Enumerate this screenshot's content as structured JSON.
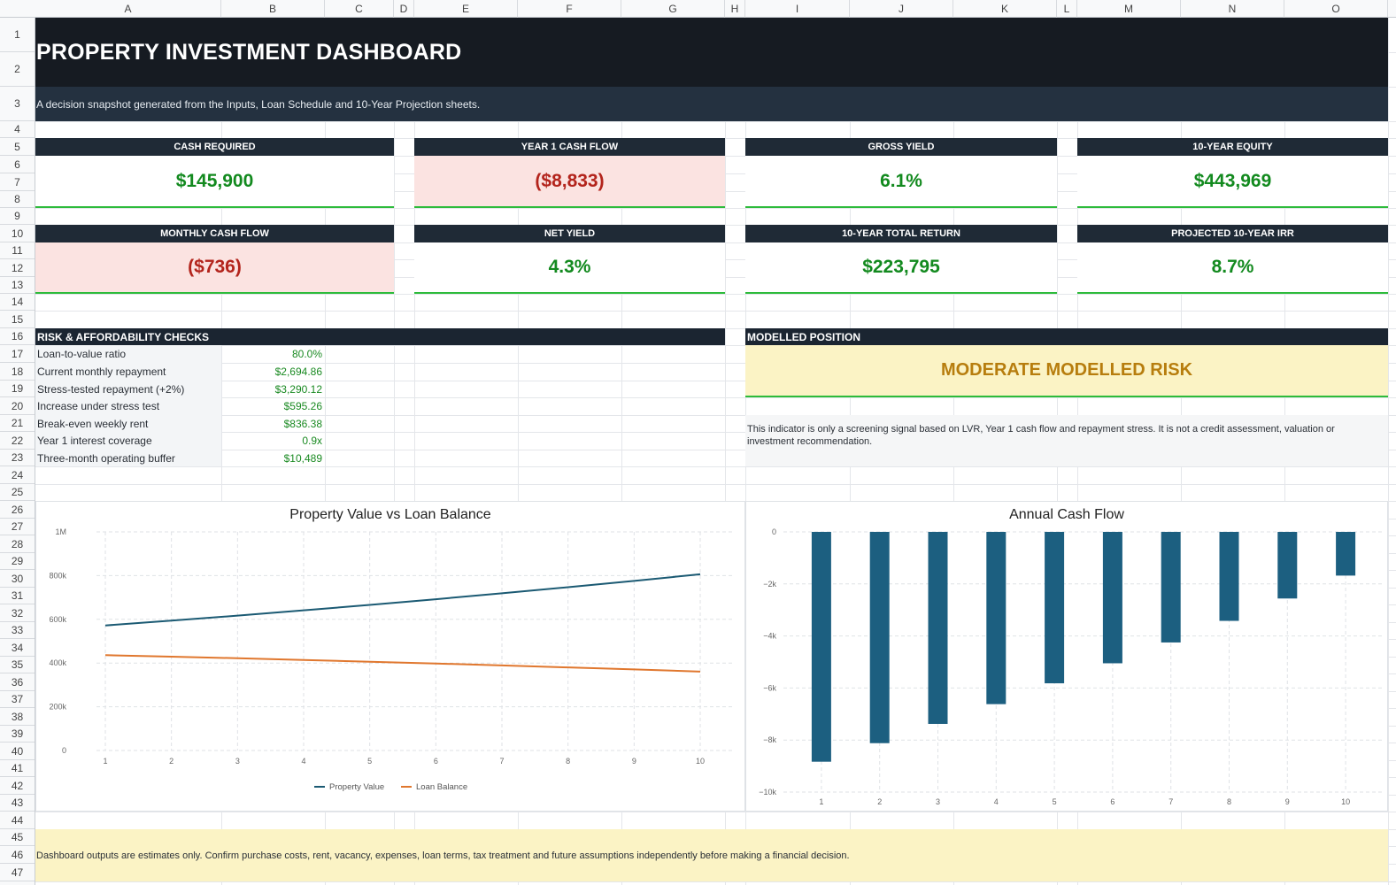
{
  "columns": [
    "A",
    "B",
    "C",
    "D",
    "E",
    "F",
    "G",
    "H",
    "I",
    "J",
    "K",
    "L",
    "M",
    "N",
    "O"
  ],
  "rows": [
    "1",
    "2",
    "3",
    "4",
    "5",
    "6",
    "7",
    "8",
    "9",
    "10",
    "11",
    "12",
    "13",
    "14",
    "15",
    "16",
    "17",
    "18",
    "19",
    "20",
    "21",
    "22",
    "23",
    "24",
    "25",
    "26",
    "27",
    "28",
    "29",
    "30",
    "31",
    "32",
    "33",
    "34",
    "35",
    "36",
    "37",
    "38",
    "39",
    "40",
    "41",
    "42",
    "43",
    "44",
    "45",
    "46",
    "47"
  ],
  "header": {
    "title": "PROPERTY INVESTMENT DASHBOARD",
    "subtitle": "A decision snapshot generated from the Inputs, Loan Schedule and 10-Year Projection sheets."
  },
  "kpis": [
    {
      "label": "CASH REQUIRED",
      "value": "$145,900",
      "status": "positive"
    },
    {
      "label": "YEAR 1 CASH FLOW",
      "value": "($8,833)",
      "status": "negative"
    },
    {
      "label": "GROSS YIELD",
      "value": "6.1%",
      "status": "positive"
    },
    {
      "label": "10-YEAR EQUITY",
      "value": "$443,969",
      "status": "positive"
    },
    {
      "label": "MONTHLY CASH FLOW",
      "value": "($736)",
      "status": "negative"
    },
    {
      "label": "NET YIELD",
      "value": "4.3%",
      "status": "positive"
    },
    {
      "label": "10-YEAR TOTAL RETURN",
      "value": "$223,795",
      "status": "positive"
    },
    {
      "label": "PROJECTED 10-YEAR IRR",
      "value": "8.7%",
      "status": "positive"
    }
  ],
  "risk": {
    "title": "RISK & AFFORDABILITY CHECKS",
    "items": [
      {
        "label": "Loan-to-value ratio",
        "value": "80.0%"
      },
      {
        "label": "Current monthly repayment",
        "value": "$2,694.86"
      },
      {
        "label": "Stress-tested repayment (+2%)",
        "value": "$3,290.12"
      },
      {
        "label": "Increase under stress test",
        "value": "$595.26"
      },
      {
        "label": "Break-even weekly rent",
        "value": "$836.38"
      },
      {
        "label": "Year 1 interest coverage",
        "value": "0.9x"
      },
      {
        "label": "Three-month operating buffer",
        "value": "$10,489"
      }
    ]
  },
  "position": {
    "title": "MODELLED POSITION",
    "status": "MODERATE MODELLED RISK",
    "note": "This indicator is only a screening signal based on LVR, Year 1 cash flow and repayment stress. It is not a credit assessment, valuation or investment recommendation."
  },
  "footer": {
    "text": "Dashboard outputs are estimates only. Confirm purchase costs, rent, vacancy, expenses, loan terms, tax treatment and future assumptions independently before making a financial decision."
  },
  "colors": {
    "positive": "#138a1f",
    "negative": "#b3241c",
    "header_dark": "#161b22",
    "property_value_line": "#1b5a73",
    "loan_balance_line": "#e0772e",
    "bar_fill": "#1c5f80",
    "risk_band": "#fbf3c5",
    "risk_text": "#b77d0e"
  },
  "chart_data": [
    {
      "type": "line",
      "title": "Property Value vs Loan Balance",
      "x": [
        1,
        2,
        3,
        4,
        5,
        6,
        7,
        8,
        9,
        10
      ],
      "x_tick_labels": [
        "1",
        "2",
        "3",
        "4",
        "5",
        "6",
        "7",
        "8",
        "9",
        "10"
      ],
      "y_tick_labels": [
        "0",
        "200k",
        "400k",
        "600k",
        "800k",
        "1M"
      ],
      "ylim": [
        0,
        1000000
      ],
      "grid": true,
      "legend_position": "bottom",
      "series": [
        {
          "name": "Property Value",
          "values": [
            572000,
            594000,
            617000,
            641000,
            666000,
            692000,
            719000,
            747000,
            776000,
            806000
          ]
        },
        {
          "name": "Loan Balance",
          "values": [
            436000,
            429000,
            422000,
            414000,
            406000,
            398000,
            389000,
            380000,
            371000,
            361000
          ]
        }
      ]
    },
    {
      "type": "bar",
      "title": "Annual Cash Flow",
      "categories": [
        "1",
        "2",
        "3",
        "4",
        "5",
        "6",
        "7",
        "8",
        "9",
        "10"
      ],
      "y_tick_labels": [
        "0",
        "−2k",
        "−4k",
        "−6k",
        "−8k",
        "−10k"
      ],
      "ylim": [
        -10000,
        0
      ],
      "grid": true,
      "values": [
        -8833,
        -8120,
        -7380,
        -6620,
        -5820,
        -5050,
        -4250,
        -3420,
        -2560,
        -1680
      ]
    }
  ]
}
